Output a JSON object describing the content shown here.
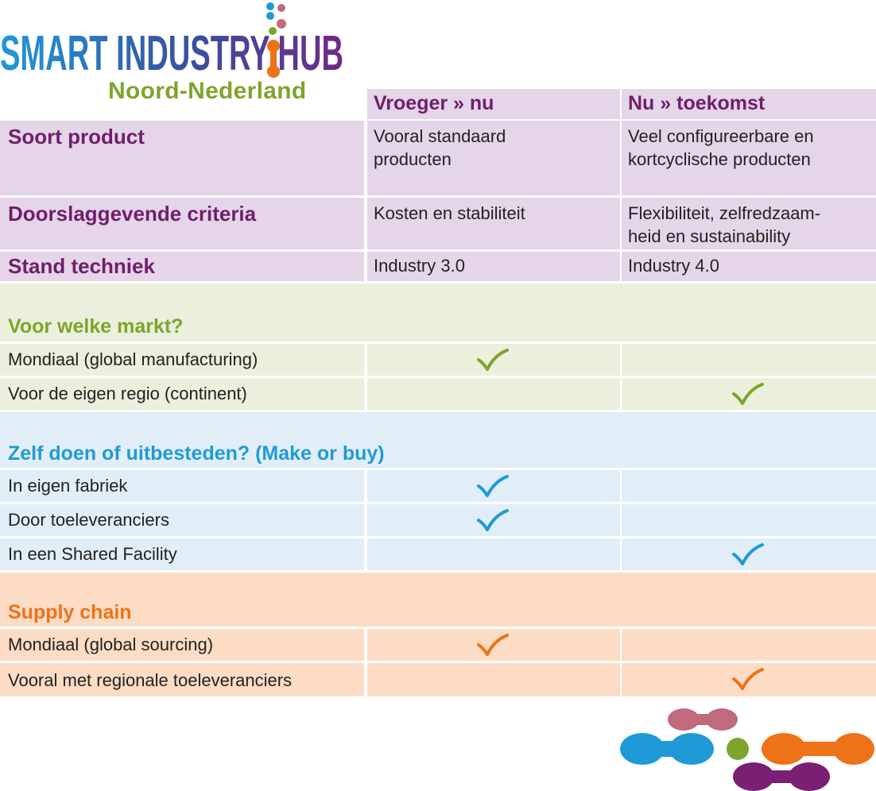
{
  "logo": {
    "title": "SMART INDUSTRY HUB",
    "subtitle": "Noord-Nederland"
  },
  "columns": {
    "past": "Vroeger » nu",
    "future": "Nu » toekomst"
  },
  "profile_rows": [
    {
      "label": "Soort product",
      "past": "Vooral standaard\nproducten",
      "future": "Veel configureerbare en\nkortcyclische producten"
    },
    {
      "label": "Doorslaggevende criteria",
      "past": "Kosten en stabiliteit",
      "future": "Flexibiliteit, zelfredzaam-\nheid en sustainability"
    },
    {
      "label": "Stand techniek",
      "past": "Industry 3.0",
      "future": "Industry 4.0"
    }
  ],
  "sections": [
    {
      "title": "Voor welke markt?",
      "color": "#7ea42c",
      "rows": [
        {
          "label": "Mondiaal (global manufacturing)",
          "check": "past"
        },
        {
          "label": "Voor de eigen regio (continent)",
          "check": "future"
        }
      ]
    },
    {
      "title": "Zelf doen of uitbesteden? (Make or buy)",
      "color": "#1f9ad6",
      "rows": [
        {
          "label": "In eigen fabriek",
          "check": "past"
        },
        {
          "label": "Door toeleveranciers",
          "check": "past"
        },
        {
          "label": "In een Shared Facility",
          "check": "future"
        }
      ]
    },
    {
      "title": "Supply chain",
      "color": "#ee7218",
      "rows": [
        {
          "label": "Mondiaal (global sourcing)",
          "check": "past"
        },
        {
          "label": "Vooral met regionale toeleveranciers",
          "check": "future"
        }
      ]
    }
  ],
  "icons": [
    "checkmark-icon",
    "molecule-logo-icon",
    "molecule-decoration-icon"
  ]
}
